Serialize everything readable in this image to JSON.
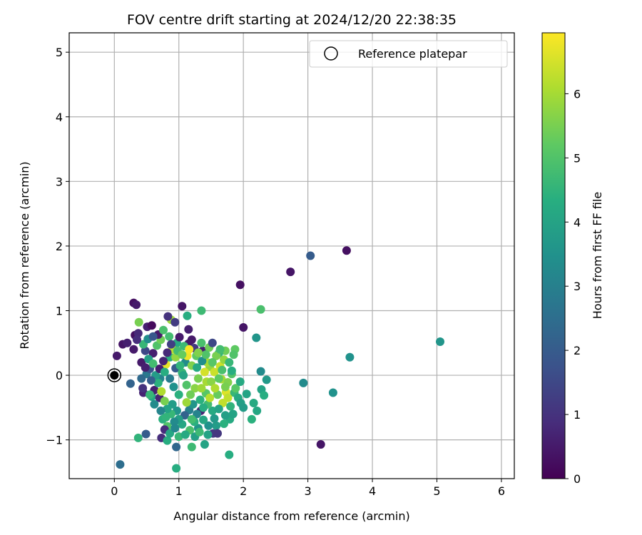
{
  "chart_data": {
    "type": "scatter",
    "title": "FOV centre drift starting at 2024/12/20 22:38:35",
    "xlabel": "Angular distance from reference (arcmin)",
    "ylabel": "Rotation from reference (arcmin)",
    "xlim": [
      -0.7,
      6.2
    ],
    "ylim": [
      -1.6,
      5.3
    ],
    "xticks": [
      "0",
      "1",
      "2",
      "3",
      "4",
      "5",
      "6"
    ],
    "yticks": [
      "−1",
      "0",
      "1",
      "2",
      "3",
      "4",
      "5"
    ],
    "grid": true,
    "legend": {
      "position": "top-right",
      "entries": [
        "Reference platepar"
      ]
    },
    "colorbar": {
      "label": "Hours from first FF file",
      "range": [
        0,
        6.95
      ],
      "ticks": [
        "0",
        "1",
        "2",
        "3",
        "4",
        "5",
        "6"
      ],
      "colormap": "viridis"
    },
    "reference_point": {
      "x": 0,
      "y": 0
    },
    "points": [
      {
        "x": 3.6,
        "y": 1.93,
        "c": 0.3
      },
      {
        "x": 3.04,
        "y": 1.85,
        "c": 2.0
      },
      {
        "x": 2.73,
        "y": 1.6,
        "c": 0.4
      },
      {
        "x": 1.95,
        "y": 1.4,
        "c": 0.3
      },
      {
        "x": 5.05,
        "y": 0.52,
        "c": 3.6
      },
      {
        "x": 3.65,
        "y": 0.28,
        "c": 3.5
      },
      {
        "x": 3.39,
        "y": -0.27,
        "c": 3.5
      },
      {
        "x": 2.93,
        "y": -0.12,
        "c": 3.3
      },
      {
        "x": 3.2,
        "y": -1.07,
        "c": 0.4
      },
      {
        "x": 2.27,
        "y": 1.02,
        "c": 4.9
      },
      {
        "x": 2.2,
        "y": 0.58,
        "c": 3.6
      },
      {
        "x": 2.0,
        "y": 0.74,
        "c": 0.4
      },
      {
        "x": 1.05,
        "y": 1.07,
        "c": 0.4
      },
      {
        "x": 1.35,
        "y": 1.0,
        "c": 4.7
      },
      {
        "x": 1.13,
        "y": 0.92,
        "c": 4.3
      },
      {
        "x": 0.3,
        "y": 1.12,
        "c": 0.3
      },
      {
        "x": 0.34,
        "y": 1.09,
        "c": 0.5
      },
      {
        "x": 0.09,
        "y": -1.38,
        "c": 2.5
      },
      {
        "x": 0.96,
        "y": -1.44,
        "c": 4.3
      },
      {
        "x": 1.78,
        "y": -1.23,
        "c": 4.3
      },
      {
        "x": 0.96,
        "y": -1.11,
        "c": 2.3
      },
      {
        "x": 1.2,
        "y": -1.11,
        "c": 4.7
      },
      {
        "x": 1.4,
        "y": -1.07,
        "c": 4.0
      },
      {
        "x": 0.37,
        "y": -0.97,
        "c": 4.5
      },
      {
        "x": 0.49,
        "y": -0.91,
        "c": 2.0
      },
      {
        "x": 0.73,
        "y": -0.97,
        "c": 0.9
      },
      {
        "x": 0.82,
        "y": -1.01,
        "c": 4.3
      },
      {
        "x": 0.04,
        "y": 0.3,
        "c": 0.5
      },
      {
        "x": 0.13,
        "y": 0.48,
        "c": 0.4
      },
      {
        "x": 0.2,
        "y": 0.5,
        "c": 0.6
      },
      {
        "x": 0.32,
        "y": 0.62,
        "c": 0.3
      },
      {
        "x": 0.37,
        "y": 0.65,
        "c": 0.8
      },
      {
        "x": 0.38,
        "y": 0.82,
        "c": 5.5
      },
      {
        "x": 0.51,
        "y": 0.75,
        "c": 0.6
      },
      {
        "x": 0.58,
        "y": 0.77,
        "c": 0.2
      },
      {
        "x": 0.88,
        "y": 0.86,
        "c": 5.9
      },
      {
        "x": 0.83,
        "y": 0.91,
        "c": 1.0
      },
      {
        "x": 0.94,
        "y": 0.82,
        "c": 1.2
      },
      {
        "x": 1.15,
        "y": 0.71,
        "c": 0.6
      },
      {
        "x": 0.25,
        "y": -0.13,
        "c": 2.2
      },
      {
        "x": 0.45,
        "y": -0.27,
        "c": 0.7
      },
      {
        "x": 0.58,
        "y": -0.33,
        "c": 4.1
      },
      {
        "x": 0.7,
        "y": -0.35,
        "c": 0.7
      },
      {
        "x": 2.13,
        "y": -0.68,
        "c": 4.4
      },
      {
        "x": 2.21,
        "y": -0.55,
        "c": 4.1
      },
      {
        "x": 2.16,
        "y": -0.43,
        "c": 4.2
      },
      {
        "x": 2.28,
        "y": -0.22,
        "c": 4.0
      },
      {
        "x": 2.32,
        "y": -0.31,
        "c": 4.3
      },
      {
        "x": 2.27,
        "y": 0.06,
        "c": 3.3
      },
      {
        "x": 2.36,
        "y": -0.07,
        "c": 3.7
      },
      {
        "x": 1.79,
        "y": -0.68,
        "c": 4.2
      },
      {
        "x": 1.72,
        "y": -0.62,
        "c": 3.9
      },
      {
        "x": 1.87,
        "y": 0.4,
        "c": 5.2
      },
      {
        "x": 1.72,
        "y": 0.38,
        "c": 5.4
      },
      {
        "x": 1.62,
        "y": 0.34,
        "c": 4.6
      },
      {
        "x": 1.64,
        "y": 0.14,
        "c": 6.4
      },
      {
        "x": 1.48,
        "y": 0.13,
        "c": 5.8
      },
      {
        "x": 1.43,
        "y": -0.1,
        "c": 6.0
      },
      {
        "x": 1.3,
        "y": -0.05,
        "c": 5.5
      },
      {
        "x": 1.34,
        "y": -0.55,
        "c": 0.7
      },
      {
        "x": 1.53,
        "y": -0.9,
        "c": 1.2
      },
      {
        "x": 1.52,
        "y": -0.55,
        "c": 4.2
      },
      {
        "x": 1.58,
        "y": -0.78,
        "c": 3.8
      },
      {
        "x": 1.16,
        "y": -0.54,
        "c": 3.0
      },
      {
        "x": 1.09,
        "y": -0.62,
        "c": 2.2
      },
      {
        "x": 0.97,
        "y": -0.55,
        "c": 3.6
      },
      {
        "x": 0.9,
        "y": -0.45,
        "c": 3.8
      },
      {
        "x": 0.75,
        "y": -0.68,
        "c": 4.4
      },
      {
        "x": 0.82,
        "y": -0.79,
        "c": 5.0
      },
      {
        "x": 0.78,
        "y": -0.84,
        "c": 0.9
      },
      {
        "x": 0.62,
        "y": -0.23,
        "c": 0.6
      },
      {
        "x": 0.71,
        "y": -0.05,
        "c": 3.1
      },
      {
        "x": 0.8,
        "y": 0.17,
        "c": 6.7
      },
      {
        "x": 0.86,
        "y": 0.28,
        "c": 4.4
      },
      {
        "x": 0.95,
        "y": 0.11,
        "c": 2.0
      },
      {
        "x": 1.05,
        "y": 0.04,
        "c": 4.6
      },
      {
        "x": 1.1,
        "y": 0.2,
        "c": 3.3
      },
      {
        "x": 1.15,
        "y": 0.49,
        "c": 0.5
      },
      {
        "x": 1.24,
        "y": 0.42,
        "c": 1.1
      },
      {
        "x": 1.27,
        "y": 0.3,
        "c": 5.2
      },
      {
        "x": 1.37,
        "y": 0.38,
        "c": 0.6
      },
      {
        "x": 1.35,
        "y": 0.5,
        "c": 4.9
      },
      {
        "x": 1.47,
        "y": 0.43,
        "c": 5.4
      },
      {
        "x": 1.52,
        "y": 0.5,
        "c": 1.5
      },
      {
        "x": 1.55,
        "y": 0.05,
        "c": 6.4
      },
      {
        "x": 1.66,
        "y": -0.06,
        "c": 6.0
      },
      {
        "x": 1.76,
        "y": -0.11,
        "c": 5.6
      },
      {
        "x": 1.82,
        "y": 0.02,
        "c": 5.0
      },
      {
        "x": 1.86,
        "y": -0.27,
        "c": 4.6
      },
      {
        "x": 1.92,
        "y": -0.35,
        "c": 4.2
      },
      {
        "x": 1.96,
        "y": -0.43,
        "c": 3.9
      },
      {
        "x": 2.05,
        "y": -0.29,
        "c": 4.0
      },
      {
        "x": 1.7,
        "y": 0.24,
        "c": 5.8
      },
      {
        "x": 1.78,
        "y": 0.2,
        "c": 4.6
      },
      {
        "x": 1.85,
        "y": 0.32,
        "c": 5.0
      },
      {
        "x": 1.82,
        "y": 0.07,
        "c": 4.3
      },
      {
        "x": 0.42,
        "y": 0.2,
        "c": 0.5
      },
      {
        "x": 0.5,
        "y": 0.02,
        "c": 2.8
      },
      {
        "x": 0.55,
        "y": 0.1,
        "c": 1.8
      },
      {
        "x": 0.6,
        "y": 0.34,
        "c": 0.6
      },
      {
        "x": 0.66,
        "y": 0.46,
        "c": 5.0
      },
      {
        "x": 0.72,
        "y": 0.55,
        "c": 5.4
      },
      {
        "x": 0.68,
        "y": 0.63,
        "c": 0.5
      },
      {
        "x": 0.85,
        "y": 0.6,
        "c": 4.8
      },
      {
        "x": 0.97,
        "y": 0.5,
        "c": 4.2
      },
      {
        "x": 1.01,
        "y": 0.59,
        "c": 0.5
      },
      {
        "x": 1.08,
        "y": 0.45,
        "c": 4.7
      },
      {
        "x": 1.13,
        "y": 0.3,
        "c": 6.8
      },
      {
        "x": 1.2,
        "y": 0.15,
        "c": 5.6
      },
      {
        "x": 1.25,
        "y": -0.2,
        "c": 5.7
      },
      {
        "x": 1.33,
        "y": -0.38,
        "c": 4.4
      },
      {
        "x": 1.42,
        "y": -0.28,
        "c": 5.1
      },
      {
        "x": 1.45,
        "y": -0.45,
        "c": 4.8
      },
      {
        "x": 1.6,
        "y": -0.3,
        "c": 5.3
      },
      {
        "x": 1.68,
        "y": -0.43,
        "c": 6.3
      },
      {
        "x": 1.73,
        "y": -0.26,
        "c": 6.6
      },
      {
        "x": 1.62,
        "y": -0.52,
        "c": 4.0
      },
      {
        "x": 1.55,
        "y": -0.67,
        "c": 3.7
      },
      {
        "x": 1.46,
        "y": -0.78,
        "c": 3.5
      },
      {
        "x": 1.38,
        "y": -0.69,
        "c": 4.1
      },
      {
        "x": 1.3,
        "y": -0.82,
        "c": 3.6
      },
      {
        "x": 1.24,
        "y": -0.72,
        "c": 4.4
      },
      {
        "x": 1.17,
        "y": -0.85,
        "c": 4.9
      },
      {
        "x": 1.05,
        "y": -0.76,
        "c": 4.1
      },
      {
        "x": 1.0,
        "y": -0.68,
        "c": 3.9
      },
      {
        "x": 0.93,
        "y": -0.72,
        "c": 3.3
      },
      {
        "x": 0.88,
        "y": -0.6,
        "c": 4.6
      },
      {
        "x": 0.82,
        "y": -0.52,
        "c": 4.0
      },
      {
        "x": 0.78,
        "y": -0.4,
        "c": 5.5
      },
      {
        "x": 0.73,
        "y": -0.25,
        "c": 6.1
      },
      {
        "x": 0.68,
        "y": -0.12,
        "c": 4.4
      },
      {
        "x": 0.64,
        "y": 0.0,
        "c": 3.8
      },
      {
        "x": 0.57,
        "y": -0.08,
        "c": 2.1
      },
      {
        "x": 0.53,
        "y": 0.25,
        "c": 3.9
      },
      {
        "x": 0.48,
        "y": 0.38,
        "c": 1.5
      },
      {
        "x": 0.45,
        "y": 0.48,
        "c": 4.6
      },
      {
        "x": 0.52,
        "y": 0.56,
        "c": 3.4
      },
      {
        "x": 0.6,
        "y": 0.6,
        "c": 1.9
      },
      {
        "x": 0.76,
        "y": 0.7,
        "c": 4.9
      },
      {
        "x": 0.9,
        "y": 0.4,
        "c": 6.2
      },
      {
        "x": 0.95,
        "y": 0.28,
        "c": 5.8
      },
      {
        "x": 1.02,
        "y": 0.15,
        "c": 4.5
      },
      {
        "x": 1.07,
        "y": 0.0,
        "c": 4.0
      },
      {
        "x": 1.12,
        "y": -0.15,
        "c": 5.0
      },
      {
        "x": 1.18,
        "y": -0.3,
        "c": 5.4
      },
      {
        "x": 1.22,
        "y": -0.45,
        "c": 3.6
      },
      {
        "x": 1.28,
        "y": -0.6,
        "c": 3.1
      },
      {
        "x": 1.35,
        "y": -0.2,
        "c": 5.9
      },
      {
        "x": 1.4,
        "y": 0.05,
        "c": 6.5
      },
      {
        "x": 1.44,
        "y": 0.2,
        "c": 6.0
      },
      {
        "x": 1.5,
        "y": -0.1,
        "c": 5.7
      },
      {
        "x": 1.56,
        "y": -0.2,
        "c": 6.1
      },
      {
        "x": 1.62,
        "y": -0.05,
        "c": 5.2
      },
      {
        "x": 1.67,
        "y": 0.08,
        "c": 4.9
      },
      {
        "x": 1.72,
        "y": -0.18,
        "c": 5.5
      },
      {
        "x": 1.76,
        "y": -0.35,
        "c": 6.3
      },
      {
        "x": 1.8,
        "y": -0.48,
        "c": 4.5
      },
      {
        "x": 1.84,
        "y": -0.6,
        "c": 4.0
      },
      {
        "x": 1.88,
        "y": -0.2,
        "c": 5.1
      },
      {
        "x": 1.95,
        "y": -0.1,
        "c": 4.2
      },
      {
        "x": 2.0,
        "y": -0.5,
        "c": 3.8
      },
      {
        "x": 0.3,
        "y": 0.4,
        "c": 0.5
      },
      {
        "x": 0.35,
        "y": 0.55,
        "c": 0.9
      },
      {
        "x": 0.42,
        "y": -0.05,
        "c": 2.4
      },
      {
        "x": 0.44,
        "y": -0.2,
        "c": 1.0
      },
      {
        "x": 0.55,
        "y": -0.3,
        "c": 4.6
      },
      {
        "x": 0.62,
        "y": -0.45,
        "c": 3.3
      },
      {
        "x": 0.72,
        "y": -0.55,
        "c": 3.1
      },
      {
        "x": 0.8,
        "y": -0.65,
        "c": 4.5
      },
      {
        "x": 0.86,
        "y": -0.9,
        "c": 4.1
      },
      {
        "x": 0.94,
        "y": -0.82,
        "c": 3.2
      },
      {
        "x": 1.0,
        "y": -0.95,
        "c": 4.6
      },
      {
        "x": 1.1,
        "y": -0.92,
        "c": 4.2
      },
      {
        "x": 1.25,
        "y": -0.95,
        "c": 3.9
      },
      {
        "x": 1.32,
        "y": -0.88,
        "c": 4.7
      },
      {
        "x": 1.45,
        "y": -0.92,
        "c": 4.0
      },
      {
        "x": 1.6,
        "y": -0.9,
        "c": 1.1
      },
      {
        "x": 1.7,
        "y": -0.75,
        "c": 4.4
      },
      {
        "x": 0.7,
        "y": 0.1,
        "c": 0.6
      },
      {
        "x": 0.76,
        "y": 0.22,
        "c": 0.7
      },
      {
        "x": 0.82,
        "y": 0.35,
        "c": 0.8
      },
      {
        "x": 0.88,
        "y": 0.48,
        "c": 1.3
      },
      {
        "x": 0.98,
        "y": 0.38,
        "c": 4.8
      },
      {
        "x": 1.05,
        "y": 0.32,
        "c": 5.3
      },
      {
        "x": 1.16,
        "y": 0.4,
        "c": 6.9
      },
      {
        "x": 1.2,
        "y": 0.55,
        "c": 0.5
      },
      {
        "x": 1.28,
        "y": 0.12,
        "c": 4.2
      },
      {
        "x": 1.36,
        "y": 0.22,
        "c": 3.4
      },
      {
        "x": 1.42,
        "y": 0.32,
        "c": 5.0
      },
      {
        "x": 1.3,
        "y": 0.35,
        "c": 5.6
      },
      {
        "x": 1.58,
        "y": 0.3,
        "c": 5.5
      },
      {
        "x": 1.64,
        "y": 0.4,
        "c": 4.8
      },
      {
        "x": 1.52,
        "y": 0.2,
        "c": 5.1
      },
      {
        "x": 1.48,
        "y": -0.35,
        "c": 6.2
      },
      {
        "x": 1.38,
        "y": -0.5,
        "c": 4.3
      },
      {
        "x": 1.2,
        "y": -0.68,
        "c": 4.8
      },
      {
        "x": 1.12,
        "y": -0.42,
        "c": 5.9
      },
      {
        "x": 1.0,
        "y": -0.3,
        "c": 4.4
      },
      {
        "x": 0.92,
        "y": -0.18,
        "c": 3.5
      },
      {
        "x": 0.86,
        "y": -0.05,
        "c": 2.9
      },
      {
        "x": 0.78,
        "y": 0.05,
        "c": 4.3
      },
      {
        "x": 0.6,
        "y": 0.18,
        "c": 4.8
      },
      {
        "x": 0.48,
        "y": 0.12,
        "c": 0.6
      }
    ]
  }
}
